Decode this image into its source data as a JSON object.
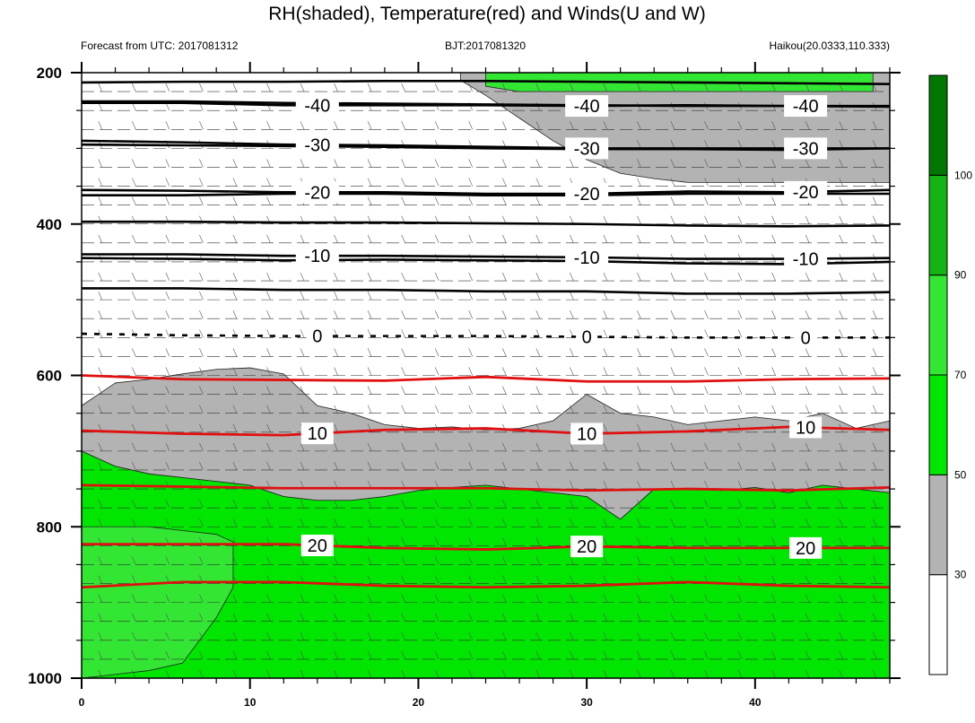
{
  "chart_data": {
    "type": "heatmap",
    "title": "RH(shaded), Temperature(red) and Winds(U and W)",
    "subtitle_left": "Forecast from UTC: 2017081312",
    "subtitle_center": "BJT:2017081320",
    "subtitle_right": "Haikou(20.0333,110.333)",
    "xlim": [
      0,
      48
    ],
    "ylim": [
      1000,
      200
    ],
    "x_ticks": [
      0,
      10,
      20,
      30,
      40
    ],
    "y_ticks": [
      200,
      400,
      600,
      800,
      1000
    ],
    "x_tick_labels": [
      "0",
      "10",
      "20",
      "30",
      "40"
    ],
    "y_tick_labels": [
      "200",
      "400",
      "600",
      "800",
      "1000"
    ],
    "colorbar": {
      "levels": [
        30,
        50,
        70,
        90,
        100
      ],
      "level_labels": [
        "30",
        "50",
        "70",
        "90",
        "100"
      ],
      "colors": [
        "#ffffff",
        "#b3b3b3",
        "#00e600",
        "#33e633",
        "#14b414",
        "#007800"
      ]
    },
    "rh_fields": {
      "gray_upper": {
        "color": "#b3b3b3",
        "x": [
          22.5,
          24,
          26,
          28,
          30,
          32,
          34,
          36,
          38,
          40,
          42,
          44,
          46,
          48,
          48,
          46,
          44,
          42,
          40,
          38,
          36,
          34,
          32,
          30,
          28,
          26,
          24,
          22.5
        ],
        "y": [
          200,
          200,
          200,
          200,
          200,
          200,
          200,
          200,
          200,
          200,
          200,
          200,
          200,
          200,
          345,
          345,
          345,
          345,
          345,
          345,
          345,
          340,
          333,
          315,
          290,
          260,
          230,
          210
        ]
      },
      "green_upper": {
        "color": "#33e633",
        "x": [
          24,
          26,
          28,
          30,
          32,
          34,
          36,
          38,
          40,
          42,
          44,
          46,
          47,
          47,
          46,
          44,
          42,
          40,
          38,
          36,
          34,
          32,
          30,
          28,
          26,
          24
        ],
        "y": [
          200,
          200,
          200,
          200,
          200,
          200,
          200,
          200,
          200,
          200,
          200,
          200,
          200,
          225,
          225,
          225,
          225,
          225,
          225,
          225,
          225,
          225,
          225,
          225,
          225,
          218
        ]
      },
      "gray_mid": {
        "color": "#b3b3b3",
        "x": [
          0,
          2,
          4,
          6,
          8,
          10,
          12,
          14,
          16,
          18,
          20,
          22,
          24,
          26,
          28,
          30,
          32,
          34,
          36,
          38,
          40,
          42,
          44,
          46,
          48,
          48,
          46,
          44,
          42,
          40,
          38,
          36,
          34,
          32,
          30,
          28,
          26,
          24,
          22,
          20,
          18,
          16,
          14,
          12,
          10,
          8,
          6,
          4,
          2,
          0
        ],
        "y": [
          640,
          610,
          605,
          598,
          592,
          590,
          598,
          640,
          650,
          665,
          670,
          668,
          672,
          670,
          660,
          625,
          650,
          655,
          665,
          660,
          655,
          660,
          650,
          670,
          660,
          755,
          750,
          745,
          755,
          748,
          752,
          750,
          750,
          790,
          760,
          755,
          750,
          745,
          748,
          752,
          760,
          765,
          765,
          760,
          745,
          740,
          735,
          730,
          720,
          700
        ]
      },
      "green_low": {
        "color": "#00e600",
        "x": [
          0,
          2,
          4,
          6,
          8,
          10,
          12,
          14,
          16,
          18,
          20,
          22,
          24,
          26,
          28,
          30,
          32,
          34,
          36,
          38,
          40,
          42,
          44,
          46,
          48,
          48,
          0
        ],
        "y": [
          700,
          720,
          730,
          735,
          740,
          745,
          760,
          765,
          765,
          760,
          752,
          748,
          745,
          750,
          755,
          760,
          790,
          750,
          750,
          752,
          748,
          755,
          745,
          750,
          755,
          1000,
          1000
        ]
      },
      "green_bright": {
        "color": "#33e633",
        "x": [
          0,
          2,
          4,
          6,
          8,
          9,
          9,
          8,
          7,
          6,
          4,
          2,
          0
        ],
        "y": [
          800,
          800,
          800,
          805,
          810,
          820,
          880,
          920,
          950,
          980,
          990,
          995,
          1000
        ]
      }
    },
    "temperature_contours": [
      {
        "label": "-40",
        "x": [
          0,
          6,
          12,
          18,
          24,
          30,
          36,
          42,
          48
        ],
        "y": [
          240,
          240,
          243,
          243,
          243,
          244,
          243,
          244,
          244
        ]
      },
      {
        "label": "-30",
        "x": [
          0,
          6,
          12,
          18,
          24,
          30,
          36,
          42,
          48
        ],
        "y": [
          290,
          292,
          295,
          296,
          298,
          300,
          300,
          300,
          300
        ]
      },
      {
        "label": "-20",
        "x": [
          0,
          6,
          12,
          18,
          24,
          30,
          36,
          42,
          48
        ],
        "y": [
          355,
          356,
          358,
          358,
          360,
          360,
          357,
          358,
          355
        ]
      },
      {
        "label": "-10",
        "x": [
          0,
          6,
          12,
          18,
          24,
          30,
          36,
          42,
          48
        ],
        "y": [
          440,
          440,
          442,
          442,
          443,
          444,
          446,
          446,
          445
        ]
      },
      {
        "label": "0",
        "x": [
          0,
          6,
          12,
          18,
          24,
          30,
          36,
          42,
          48
        ],
        "y": [
          545,
          547,
          548,
          548,
          548,
          549,
          550,
          550,
          550
        ]
      },
      {
        "label": "",
        "x": [
          0,
          6,
          12,
          18,
          24,
          30,
          36,
          42,
          48
        ],
        "y": [
          600,
          605,
          606,
          607,
          602,
          608,
          608,
          605,
          604
        ]
      },
      {
        "label": "10",
        "x": [
          0,
          6,
          12,
          18,
          24,
          30,
          36,
          42,
          48
        ],
        "y": [
          673,
          677,
          679,
          672,
          670,
          677,
          674,
          668,
          672
        ]
      },
      {
        "label": "",
        "x": [
          0,
          6,
          12,
          18,
          24,
          30,
          36,
          42,
          48
        ],
        "y": [
          745,
          747,
          749,
          749,
          749,
          752,
          750,
          752,
          748
        ]
      },
      {
        "label": "20",
        "x": [
          0,
          6,
          12,
          18,
          24,
          30,
          36,
          42,
          48
        ],
        "y": [
          823,
          823,
          823,
          828,
          830,
          826,
          828,
          828,
          828
        ]
      },
      {
        "label": "",
        "x": [
          0,
          6,
          12,
          18,
          24,
          30,
          36,
          42,
          48
        ],
        "y": [
          880,
          873,
          873,
          878,
          880,
          878,
          873,
          878,
          880
        ]
      }
    ],
    "black_contours": [
      {
        "y": [
          213,
          212,
          212,
          211,
          211,
          212,
          213,
          214,
          215
        ]
      },
      {
        "y": [
          238,
          238,
          240,
          241,
          242,
          243,
          244,
          244,
          245
        ]
      },
      {
        "y": [
          295,
          296,
          297,
          298,
          300,
          301,
          301,
          302,
          300
        ]
      },
      {
        "y": [
          362,
          362,
          360,
          360,
          362,
          362,
          360,
          360,
          360
        ]
      },
      {
        "y": [
          397,
          397,
          398,
          398,
          399,
          400,
          402,
          403,
          402
        ]
      },
      {
        "y": [
          445,
          446,
          448,
          447,
          448,
          449,
          452,
          453,
          450
        ]
      },
      {
        "y": [
          485,
          485,
          487,
          487,
          489,
          489,
          492,
          492,
          490
        ]
      }
    ]
  }
}
